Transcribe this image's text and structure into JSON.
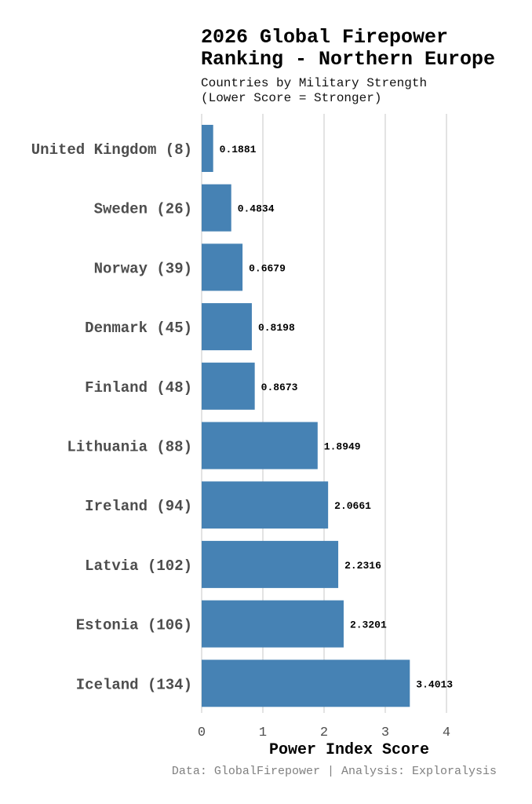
{
  "chart_data": {
    "type": "bar",
    "orientation": "horizontal",
    "title": "2026 Global Firepower Ranking - Northern Europe",
    "title_lines": [
      "2026 Global Firepower",
      "Ranking - Northern Europe"
    ],
    "subtitle_lines": [
      "Countries by Military Strength",
      "(Lower Score = Stronger)"
    ],
    "categories": [
      "United Kingdom (8)",
      "Sweden (26)",
      "Norway (39)",
      "Denmark (45)",
      "Finland (48)",
      "Lithuania (88)",
      "Ireland (94)",
      "Latvia (102)",
      "Estonia (106)",
      "Iceland (134)"
    ],
    "values": [
      0.1881,
      0.4834,
      0.6679,
      0.8198,
      0.8673,
      1.8949,
      2.0661,
      2.2316,
      2.3201,
      3.4013
    ],
    "value_labels": [
      "0.1881",
      "0.4834",
      "0.6679",
      "0.8198",
      "0.8673",
      "1.8949",
      "2.0661",
      "2.2316",
      "2.3201",
      "3.4013"
    ],
    "xlabel": "Power Index Score",
    "ylabel": "",
    "xlim": [
      0,
      4
    ],
    "xticks": [
      "0",
      "1",
      "2",
      "3",
      "4"
    ],
    "grid": true,
    "bar_color": "#4682b4",
    "caption": "Data: GlobalFirepower | Analysis: Exploralysis"
  }
}
